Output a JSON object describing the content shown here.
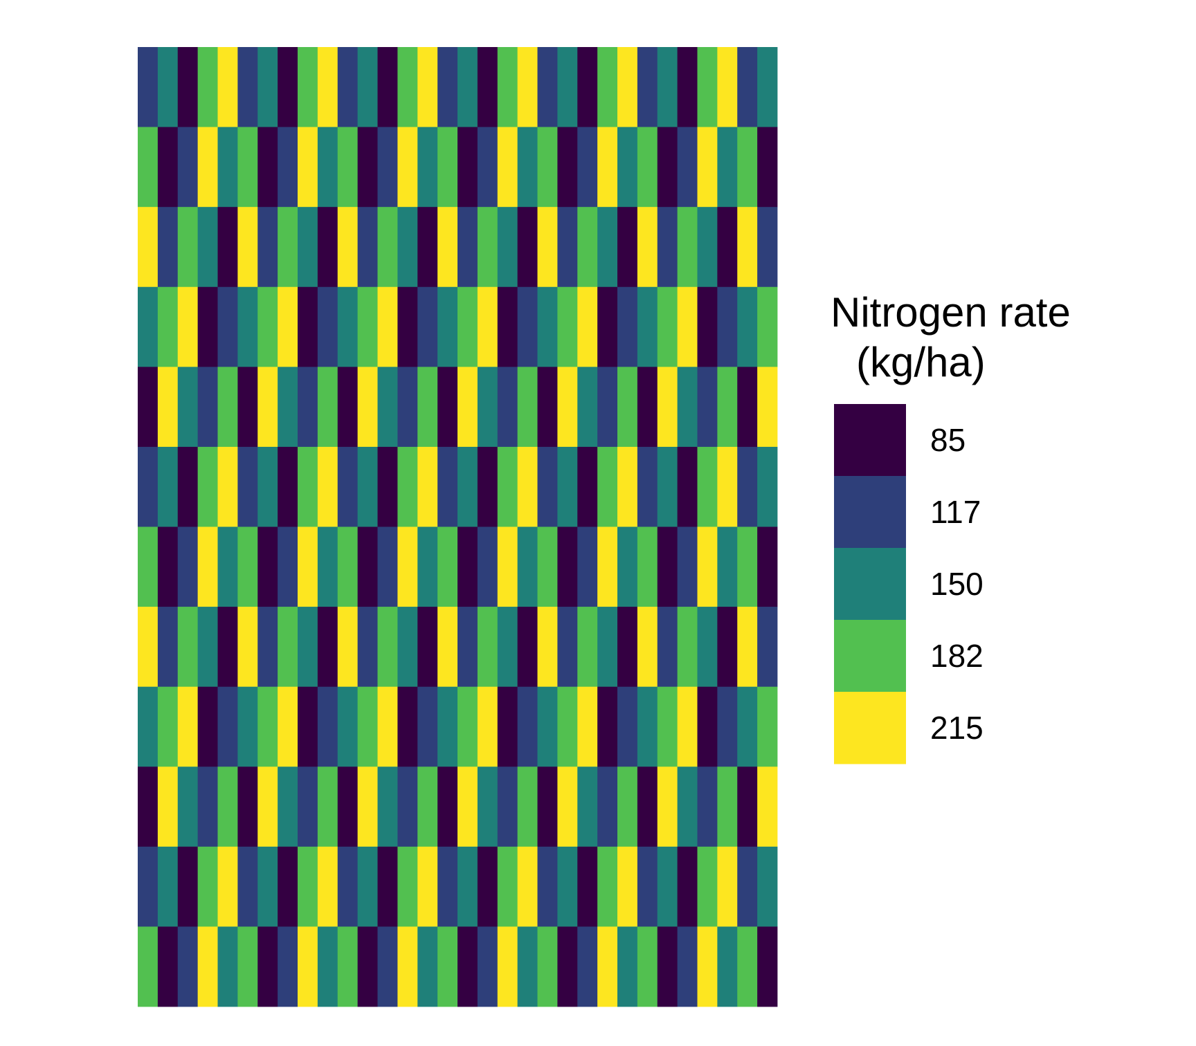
{
  "chart_data": {
    "type": "heatmap",
    "title": "",
    "xlabel": "",
    "ylabel": "",
    "grid": false,
    "legend": {
      "title_lines": [
        "Nitrogen rate",
        "(kg/ha)"
      ],
      "placement": "right",
      "levels": [
        {
          "label": "85",
          "value": 85,
          "color": "#340042"
        },
        {
          "label": "117",
          "value": 117,
          "color": "#2e3f7a"
        },
        {
          "label": "150",
          "value": 150,
          "color": "#1f8079"
        },
        {
          "label": "182",
          "value": 182,
          "color": "#52c050"
        },
        {
          "label": "215",
          "value": 215,
          "color": "#fde620"
        }
      ]
    },
    "n_rows": 12,
    "n_cols": 32,
    "rows": [
      [
        117,
        150,
        85,
        182,
        215,
        117,
        150,
        85,
        182,
        215,
        117,
        150,
        85,
        182,
        215,
        117,
        150,
        85,
        182,
        215,
        117,
        150,
        85,
        182,
        215,
        117,
        150,
        85,
        182,
        215,
        117,
        150
      ],
      [
        182,
        85,
        117,
        215,
        150,
        182,
        85,
        117,
        215,
        150,
        182,
        85,
        117,
        215,
        150,
        182,
        85,
        117,
        215,
        150,
        182,
        85,
        117,
        215,
        150,
        182,
        85,
        117,
        215,
        150,
        182,
        85
      ],
      [
        215,
        117,
        182,
        150,
        85,
        215,
        117,
        182,
        150,
        85,
        215,
        117,
        182,
        150,
        85,
        215,
        117,
        182,
        150,
        85,
        215,
        117,
        182,
        150,
        85,
        215,
        117,
        182,
        150,
        85,
        215,
        117
      ],
      [
        150,
        182,
        215,
        85,
        117,
        150,
        182,
        215,
        85,
        117,
        150,
        182,
        215,
        85,
        117,
        150,
        182,
        215,
        85,
        117,
        150,
        182,
        215,
        85,
        117,
        150,
        182,
        215,
        85,
        117,
        150,
        182
      ],
      [
        85,
        215,
        150,
        117,
        182,
        85,
        215,
        150,
        117,
        182,
        85,
        215,
        150,
        117,
        182,
        85,
        215,
        150,
        117,
        182,
        85,
        215,
        150,
        117,
        182,
        85,
        215,
        150,
        117,
        182,
        85,
        215
      ],
      [
        117,
        150,
        85,
        182,
        215,
        117,
        150,
        85,
        182,
        215,
        117,
        150,
        85,
        182,
        215,
        117,
        150,
        85,
        182,
        215,
        117,
        150,
        85,
        182,
        215,
        117,
        150,
        85,
        182,
        215,
        117,
        150
      ],
      [
        182,
        85,
        117,
        215,
        150,
        182,
        85,
        117,
        215,
        150,
        182,
        85,
        117,
        215,
        150,
        182,
        85,
        117,
        215,
        150,
        182,
        85,
        117,
        215,
        150,
        182,
        85,
        117,
        215,
        150,
        182,
        85
      ],
      [
        215,
        117,
        182,
        150,
        85,
        215,
        117,
        182,
        150,
        85,
        215,
        117,
        182,
        150,
        85,
        215,
        117,
        182,
        150,
        85,
        215,
        117,
        182,
        150,
        85,
        215,
        117,
        182,
        150,
        85,
        215,
        117
      ],
      [
        150,
        182,
        215,
        85,
        117,
        150,
        182,
        215,
        85,
        117,
        150,
        182,
        215,
        85,
        117,
        150,
        182,
        215,
        85,
        117,
        150,
        182,
        215,
        85,
        117,
        150,
        182,
        215,
        85,
        117,
        150,
        182
      ],
      [
        85,
        215,
        150,
        117,
        182,
        85,
        215,
        150,
        117,
        182,
        85,
        215,
        150,
        117,
        182,
        85,
        215,
        150,
        117,
        182,
        85,
        215,
        150,
        117,
        182,
        85,
        215,
        150,
        117,
        182,
        85,
        215
      ],
      [
        117,
        150,
        85,
        182,
        215,
        117,
        150,
        85,
        182,
        215,
        117,
        150,
        85,
        182,
        215,
        117,
        150,
        85,
        182,
        215,
        117,
        150,
        85,
        182,
        215,
        117,
        150,
        85,
        182,
        215,
        117,
        150
      ],
      [
        182,
        85,
        117,
        215,
        150,
        182,
        85,
        117,
        215,
        150,
        182,
        85,
        117,
        215,
        150,
        182,
        85,
        117,
        215,
        150,
        182,
        85,
        117,
        215,
        150,
        182,
        85,
        117,
        215,
        150,
        182,
        85
      ]
    ]
  }
}
